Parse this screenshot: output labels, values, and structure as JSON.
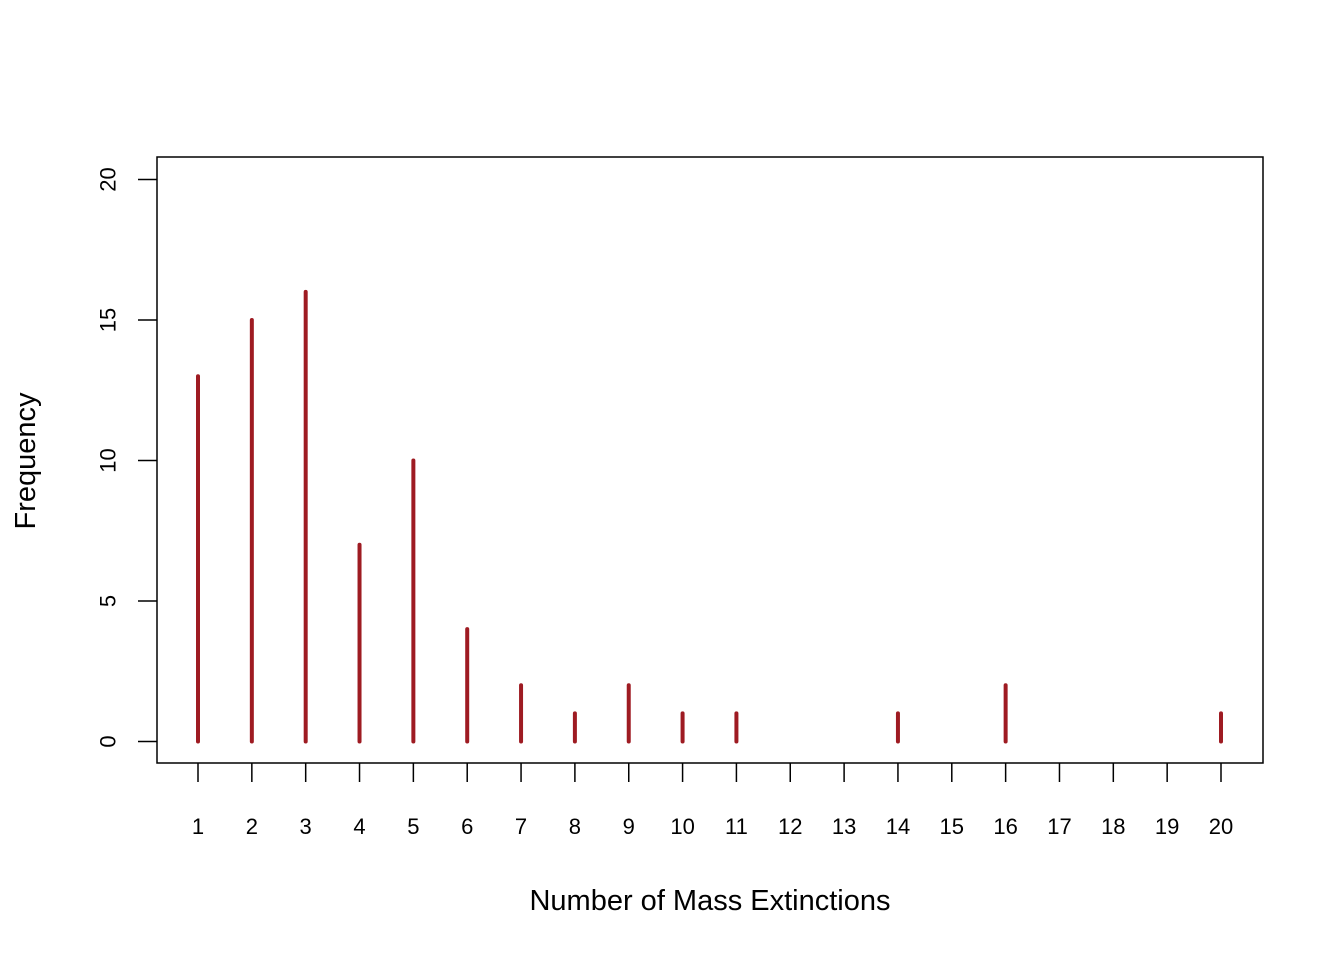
{
  "chart_data": {
    "type": "bar",
    "style": "spike",
    "categories": [
      "1",
      "2",
      "3",
      "4",
      "5",
      "6",
      "7",
      "8",
      "9",
      "10",
      "11",
      "12",
      "13",
      "14",
      "15",
      "16",
      "17",
      "18",
      "19",
      "20"
    ],
    "values": [
      13,
      15,
      16,
      7,
      10,
      4,
      2,
      1,
      2,
      1,
      1,
      0,
      0,
      1,
      0,
      2,
      0,
      0,
      0,
      1
    ],
    "xlabel": "Number of Mass Extinctions",
    "ylabel": "Frequency",
    "ylim": [
      0,
      20
    ],
    "yticks": [
      "0",
      "5",
      "10",
      "15",
      "20"
    ],
    "grid": false,
    "legend": "none",
    "colors": {
      "bar": "#9E1B22",
      "axis": "#000000"
    }
  }
}
